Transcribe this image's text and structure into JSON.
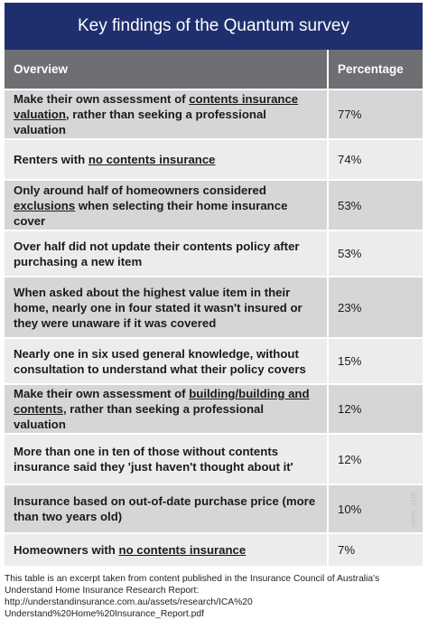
{
  "title": "Key findings of the Quantum survey",
  "table": {
    "headers": {
      "overview": "Overview",
      "percentage": "Percentage"
    },
    "rows": [
      {
        "parts": [
          {
            "text": "Make their own assessment of "
          },
          {
            "text": "contents insurance valuation",
            "u": true
          },
          {
            "text": ", rather than seeking a professional valuation"
          }
        ],
        "value": "77%"
      },
      {
        "parts": [
          {
            "text": "Renters with "
          },
          {
            "text": "no contents insurance",
            "u": true
          }
        ],
        "value": "74%"
      },
      {
        "parts": [
          {
            "text": "Only around half of homeowners considered "
          },
          {
            "text": "exclusions",
            "u": true
          },
          {
            "text": " when selecting their home insurance cover"
          }
        ],
        "value": "53%"
      },
      {
        "parts": [
          {
            "text": "Over half did not update their contents policy after purchasing a new item"
          }
        ],
        "value": "53%"
      },
      {
        "parts": [
          {
            "text": "When asked about the highest value item in their home, nearly one in four stated it wasn't insured or they were unaware if it was covered"
          }
        ],
        "value": "23%"
      },
      {
        "parts": [
          {
            "text": "Nearly one in six used general knowledge, without consultation to understand what their policy covers"
          }
        ],
        "value": "15%"
      },
      {
        "parts": [
          {
            "text": "Make their own assessment of "
          },
          {
            "text": "building/building and contents",
            "u": true
          },
          {
            "text": ", rather than seeking a professional valuation"
          }
        ],
        "value": "12%"
      },
      {
        "parts": [
          {
            "text": "More than one in ten of those without contents insurance said they 'just haven't thought about it'"
          }
        ],
        "value": "12%"
      },
      {
        "parts": [
          {
            "text": "Insurance based on out-of-date purchase price (more than two years old)"
          }
        ],
        "value": "10%"
      },
      {
        "parts": [
          {
            "text": "Homeowners with "
          },
          {
            "text": "no contents insurance",
            "u": true
          }
        ],
        "value": "7%"
      }
    ]
  },
  "watermark": "ninety_2016",
  "footnote": "This table is an excerpt taken from content published in the Insurance Council of Australia's Understand Home Insurance Research Report: http://understandinsurance.com.au/assets/research/ICA%20 Understand%20Home%20Insurance_Report.pdf",
  "colors": {
    "title_bg": "#1f2f6e",
    "header_bg": "#6e6f72",
    "row_dark": "#d6d6d6",
    "row_light": "#ececec"
  }
}
